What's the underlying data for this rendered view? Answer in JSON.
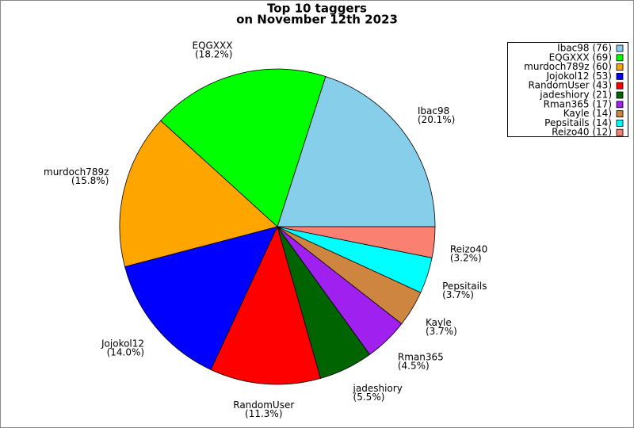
{
  "chart_data": {
    "type": "pie",
    "title": "Top 10 taggers",
    "subtitle": "on November 12th 2023",
    "categories": [
      "Ibac98",
      "EQGXXX",
      "murdoch789z",
      "Jojokol12",
      "RandomUser",
      "jadeshiory",
      "Rman365",
      "Kayle",
      "Pepsitails",
      "Reizo40"
    ],
    "values": [
      76,
      69,
      60,
      53,
      43,
      21,
      17,
      14,
      14,
      12
    ],
    "value_labels": [
      "(20.1%)",
      "(18.2%)",
      "(15.8%)",
      "(14.0%)",
      "(11.3%)",
      "(5.5%)",
      "(4.5%)",
      "(3.7%)",
      "(3.7%)",
      "(3.2%)"
    ],
    "legend_labels": [
      "Ibac98 (76)",
      "EQGXXX (69)",
      "murdoch789z (60)",
      "Jojokol12 (53)",
      "RandomUser (43)",
      "jadeshiory (21)",
      "Rman365 (17)",
      "Kayle (14)",
      "Pepsitails (14)",
      "Reizo40 (12)"
    ],
    "colors": [
      "#87ceeb",
      "#00ff00",
      "#ffa500",
      "#0000ff",
      "#ff0000",
      "#006400",
      "#a020f0",
      "#cd853f",
      "#00ffff",
      "#fa8072"
    ],
    "legend_position": "upper right"
  }
}
